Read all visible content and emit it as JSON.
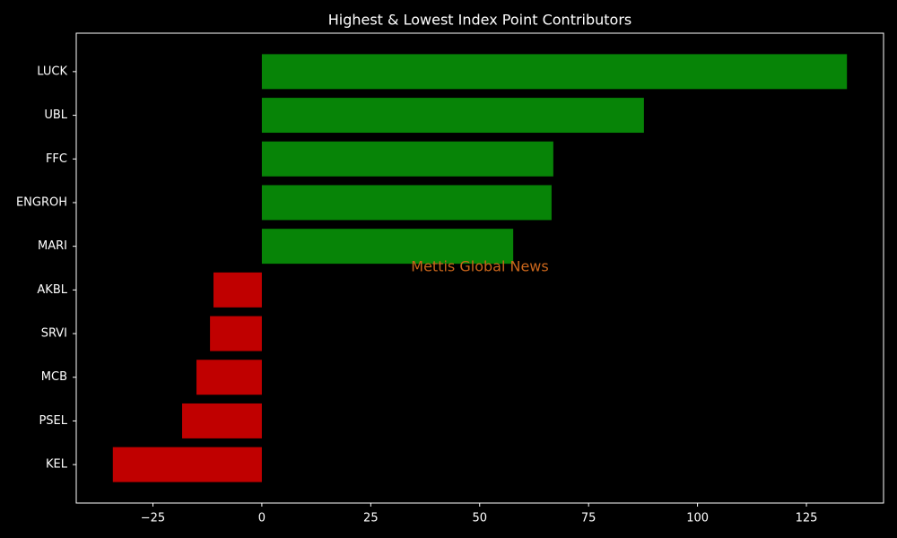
{
  "chart_data": {
    "type": "barh",
    "title": "Highest & Lowest Index Point Contributors",
    "categories": [
      "LUCK",
      "UBL",
      "FFC",
      "ENGROH",
      "MARI",
      "AKBL",
      "SRVI",
      "MCB",
      "PSEL",
      "KEL"
    ],
    "values": [
      134.3,
      87.7,
      66.9,
      66.5,
      57.7,
      -11.1,
      -11.9,
      -15.0,
      -18.3,
      -34.2
    ],
    "colors": [
      "#078407",
      "#078407",
      "#078407",
      "#078407",
      "#078407",
      "#c00000",
      "#c00000",
      "#c00000",
      "#c00000",
      "#c00000"
    ],
    "xlim": [
      -42.6,
      142.7
    ],
    "xticks": [
      {
        "value": -25,
        "label": "−25"
      },
      0,
      25,
      50,
      75,
      100,
      125
    ],
    "annotation": "Mettis Global News"
  }
}
